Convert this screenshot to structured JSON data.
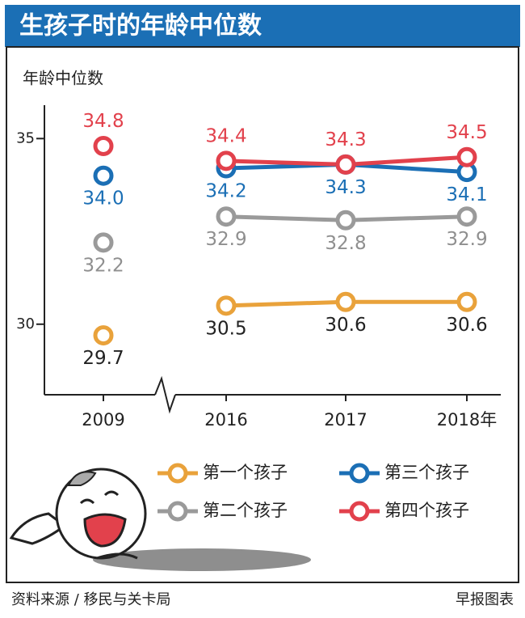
{
  "chart_data": {
    "type": "line",
    "title": "生孩子时的年龄中位数",
    "y_label": "年龄中位数",
    "categories": [
      "2009",
      "2016",
      "2017",
      "2018年"
    ],
    "x_axis_break": true,
    "ylim": [
      28.1,
      35.9
    ],
    "yticks": [
      30,
      35
    ],
    "series": [
      {
        "name": "第一个孩子",
        "color": "#e9a23b",
        "label_color": "#222222",
        "values": [
          29.7,
          30.5,
          30.6,
          30.6
        ]
      },
      {
        "name": "第二个孩子",
        "color": "#9a9a9a",
        "label_color": "#8f8f8f",
        "values": [
          32.2,
          32.9,
          32.8,
          32.9
        ]
      },
      {
        "name": "第三个孩子",
        "color": "#1b6fb5",
        "label_color": "#1b6fb5",
        "values": [
          34.0,
          34.2,
          34.3,
          34.1
        ],
        "value_labels": [
          "34.0",
          "34.2",
          "34.3",
          "34.1"
        ]
      },
      {
        "name": "第四个孩子",
        "color": "#e2414c",
        "label_color": "#e2414c",
        "values": [
          34.8,
          34.4,
          34.3,
          34.5
        ]
      }
    ],
    "source": "资料来源 / 移民与关卡局",
    "credit": "早报图表"
  }
}
